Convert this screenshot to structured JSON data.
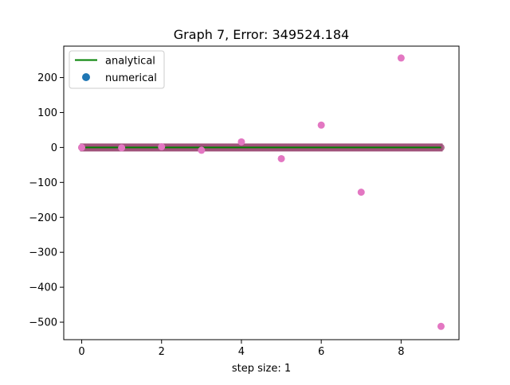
{
  "chart_data": {
    "type": "scatter",
    "title": "Graph 7, Error: 349524.184",
    "xlabel": "step size: 1",
    "ylabel": "",
    "xlim": [
      -0.45,
      9.45
    ],
    "ylim": [
      -550,
      290
    ],
    "xticks": [
      0,
      2,
      4,
      6,
      8
    ],
    "yticks": [
      -500,
      -400,
      -300,
      -200,
      -100,
      0,
      100,
      200
    ],
    "grid": false,
    "legend_position": "top-left",
    "legend": [
      {
        "label": "analytical",
        "kind": "line",
        "color": "#008000"
      },
      {
        "label": "numerical",
        "kind": "marker",
        "color": "#1f77b4"
      }
    ],
    "band": {
      "x": [
        0,
        9
      ],
      "y": 0,
      "color": "#a0527a"
    },
    "series": [
      {
        "name": "analytical",
        "kind": "line",
        "color": "#008000",
        "x": [
          0,
          9
        ],
        "y": [
          0,
          0
        ]
      },
      {
        "name": "numerical",
        "kind": "scatter",
        "color": "#e377c2",
        "x": [
          0,
          1,
          2,
          3,
          4,
          5,
          6,
          7,
          8,
          9
        ],
        "y": [
          0,
          -1,
          2,
          -8,
          16,
          -32,
          64,
          -128,
          256,
          -512
        ]
      }
    ]
  }
}
